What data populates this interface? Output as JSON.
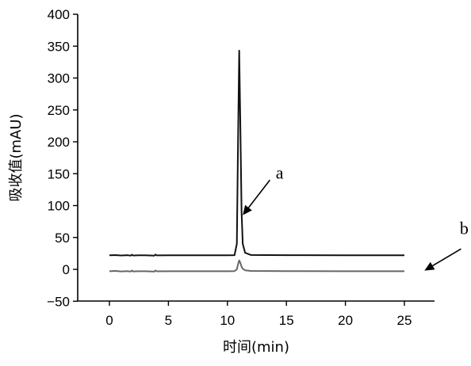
{
  "chart_data": {
    "type": "line",
    "title": "",
    "xlabel": "时间(min)",
    "ylabel": "吸收值(mAU)",
    "xlim": [
      -2.5,
      27.5
    ],
    "ylim": [
      -50,
      400
    ],
    "x_ticks": [
      0,
      5,
      10,
      15,
      20,
      25
    ],
    "y_ticks": [
      -50,
      0,
      50,
      100,
      150,
      200,
      250,
      300,
      350,
      400
    ],
    "grid": false,
    "legend": "none",
    "series": [
      {
        "color": "#111111",
        "points": [
          [
            0,
            22
          ],
          [
            0.5,
            22.3
          ],
          [
            1.0,
            21.8
          ],
          [
            1.5,
            22.2
          ],
          [
            1.8,
            21.5
          ],
          [
            1.9,
            23.0
          ],
          [
            2.0,
            21.8
          ],
          [
            2.5,
            22.0
          ],
          [
            3.0,
            22.1
          ],
          [
            3.5,
            21.8
          ],
          [
            3.8,
            21.5
          ],
          [
            3.9,
            23.2
          ],
          [
            4.0,
            21.9
          ],
          [
            5.0,
            22.0
          ],
          [
            8.0,
            22.0
          ],
          [
            10.0,
            22.0
          ],
          [
            10.6,
            22.2
          ],
          [
            10.8,
            40.0
          ],
          [
            10.9,
            200.0
          ],
          [
            11.0,
            343.0
          ],
          [
            11.1,
            220.0
          ],
          [
            11.2,
            90.0
          ],
          [
            11.3,
            40.0
          ],
          [
            11.5,
            26.0
          ],
          [
            12.0,
            22.5
          ],
          [
            15.0,
            22.2
          ],
          [
            20.0,
            22.1
          ],
          [
            25.0,
            22.0
          ]
        ]
      },
      {
        "color": "#666666",
        "points": [
          [
            0,
            -3
          ],
          [
            0.5,
            -2.5
          ],
          [
            1.0,
            -3.2
          ],
          [
            1.5,
            -2.8
          ],
          [
            1.8,
            -3.5
          ],
          [
            1.9,
            -1.8
          ],
          [
            2.0,
            -3.2
          ],
          [
            2.5,
            -3.0
          ],
          [
            3.0,
            -2.9
          ],
          [
            3.5,
            -3.2
          ],
          [
            3.8,
            -3.5
          ],
          [
            3.9,
            -1.7
          ],
          [
            4.0,
            -3.1
          ],
          [
            5.0,
            -3.0
          ],
          [
            8.0,
            -3.0
          ],
          [
            10.0,
            -3.0
          ],
          [
            10.6,
            -2.8
          ],
          [
            10.8,
            0.0
          ],
          [
            10.9,
            8.0
          ],
          [
            11.0,
            14.0
          ],
          [
            11.1,
            10.0
          ],
          [
            11.2,
            4.0
          ],
          [
            11.3,
            1.0
          ],
          [
            11.5,
            -1.5
          ],
          [
            12.0,
            -2.5
          ],
          [
            15.0,
            -2.8
          ],
          [
            20.0,
            -2.9
          ],
          [
            25.0,
            -3.0
          ]
        ]
      }
    ],
    "annotations": [
      {
        "label": "a",
        "arrow_tip": [
          11.3,
          85
        ],
        "arrow_tail": [
          13.6,
          140
        ],
        "text_at": [
          14.1,
          142
        ]
      },
      {
        "label": "b",
        "arrow_tip": [
          26.7,
          -2
        ],
        "arrow_tail": [
          29.8,
          32
        ],
        "text_at": [
          29.7,
          55
        ]
      }
    ]
  }
}
